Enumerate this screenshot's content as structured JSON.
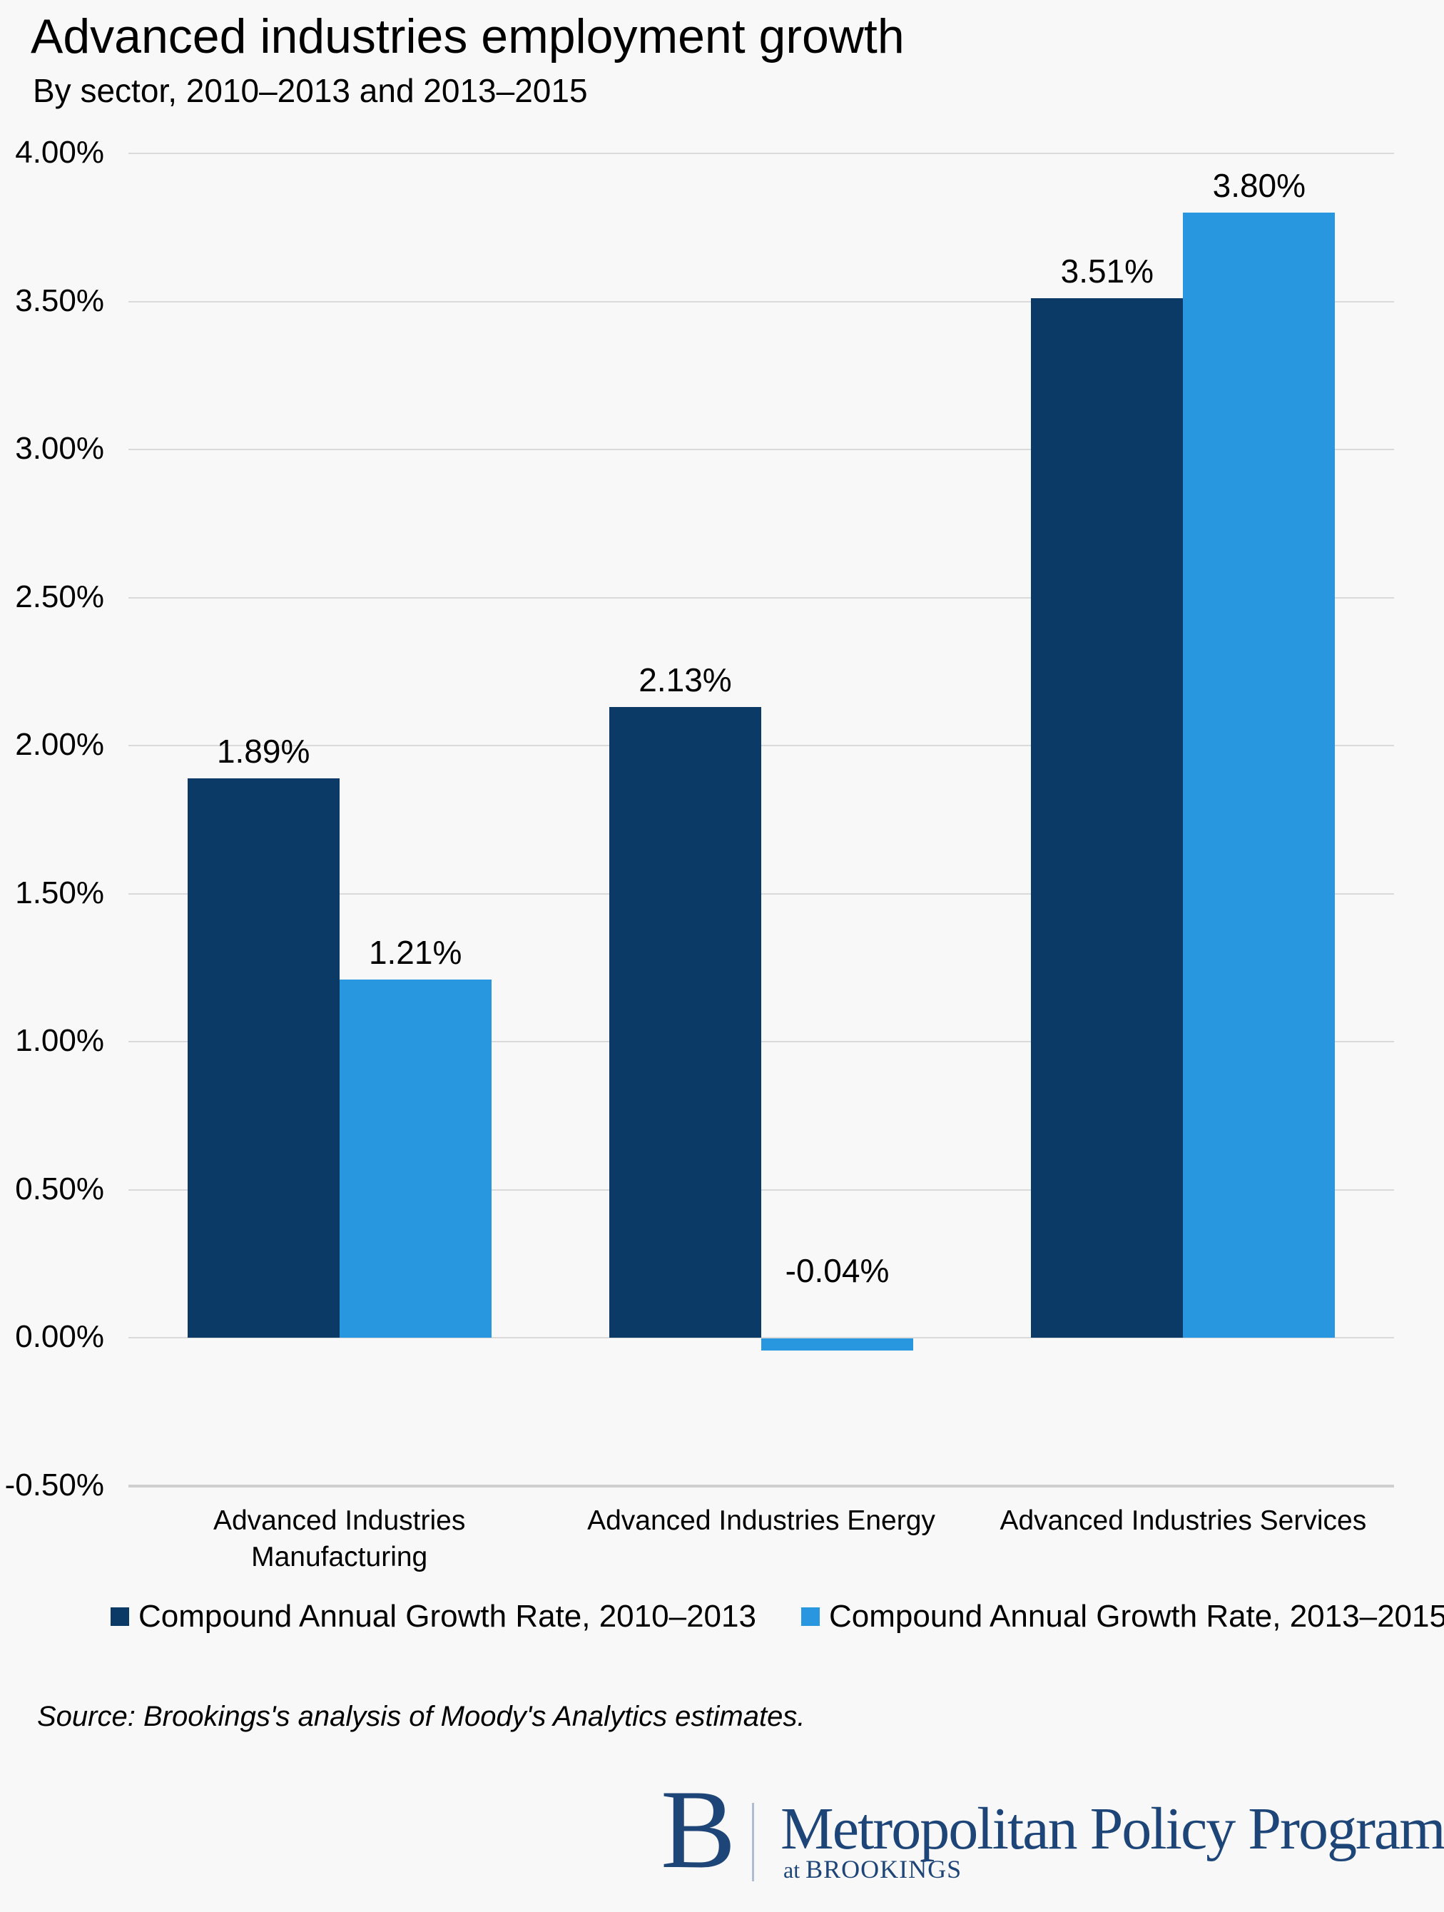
{
  "header": {
    "title": "Advanced industries employment growth",
    "subtitle": "By sector, 2010–2013 and 2013–2015"
  },
  "chart_data": {
    "type": "bar",
    "categories": [
      "Advanced Industries Manufacturing",
      "Advanced Industries Energy",
      "Advanced Industries Services"
    ],
    "series": [
      {
        "name": "Compound Annual Growth Rate, 2010–2013",
        "color": "#0b3a67",
        "values": [
          1.89,
          2.13,
          3.51
        ],
        "labels": [
          "1.89%",
          "2.13%",
          "3.51%"
        ]
      },
      {
        "name": "Compound Annual Growth Rate, 2013–2015",
        "color": "#2997e0",
        "values": [
          1.21,
          -0.04,
          3.8
        ],
        "labels": [
          "1.21%",
          "-0.04%",
          "3.80%"
        ]
      }
    ],
    "ylabel": "",
    "xlabel": "",
    "ylim": [
      -0.5,
      4.0
    ],
    "ytick_step": 0.5,
    "ytick_labels": [
      "4.00%",
      "3.50%",
      "3.00%",
      "2.50%",
      "2.00%",
      "1.50%",
      "1.00%",
      "0.50%",
      "0.00%",
      "-0.50%"
    ],
    "grid": true,
    "legend_position": "bottom"
  },
  "source": {
    "text": "Source: Brookings's analysis of Moody's Analytics estimates."
  },
  "logo": {
    "mark": "B",
    "line1": "Metropolitan Policy Program",
    "line2_prefix": "at ",
    "line2": "BROOKINGS",
    "color": "#1e4577"
  },
  "colors": {
    "background": "#f8f8f8",
    "gridline": "#dadada",
    "axis_line": "#cfcfcf",
    "text": "#000000",
    "series_dark": "#0b3a67",
    "series_light": "#2997e0",
    "logo_navy": "#1e4577",
    "logo_divider": "#aebdd3"
  }
}
